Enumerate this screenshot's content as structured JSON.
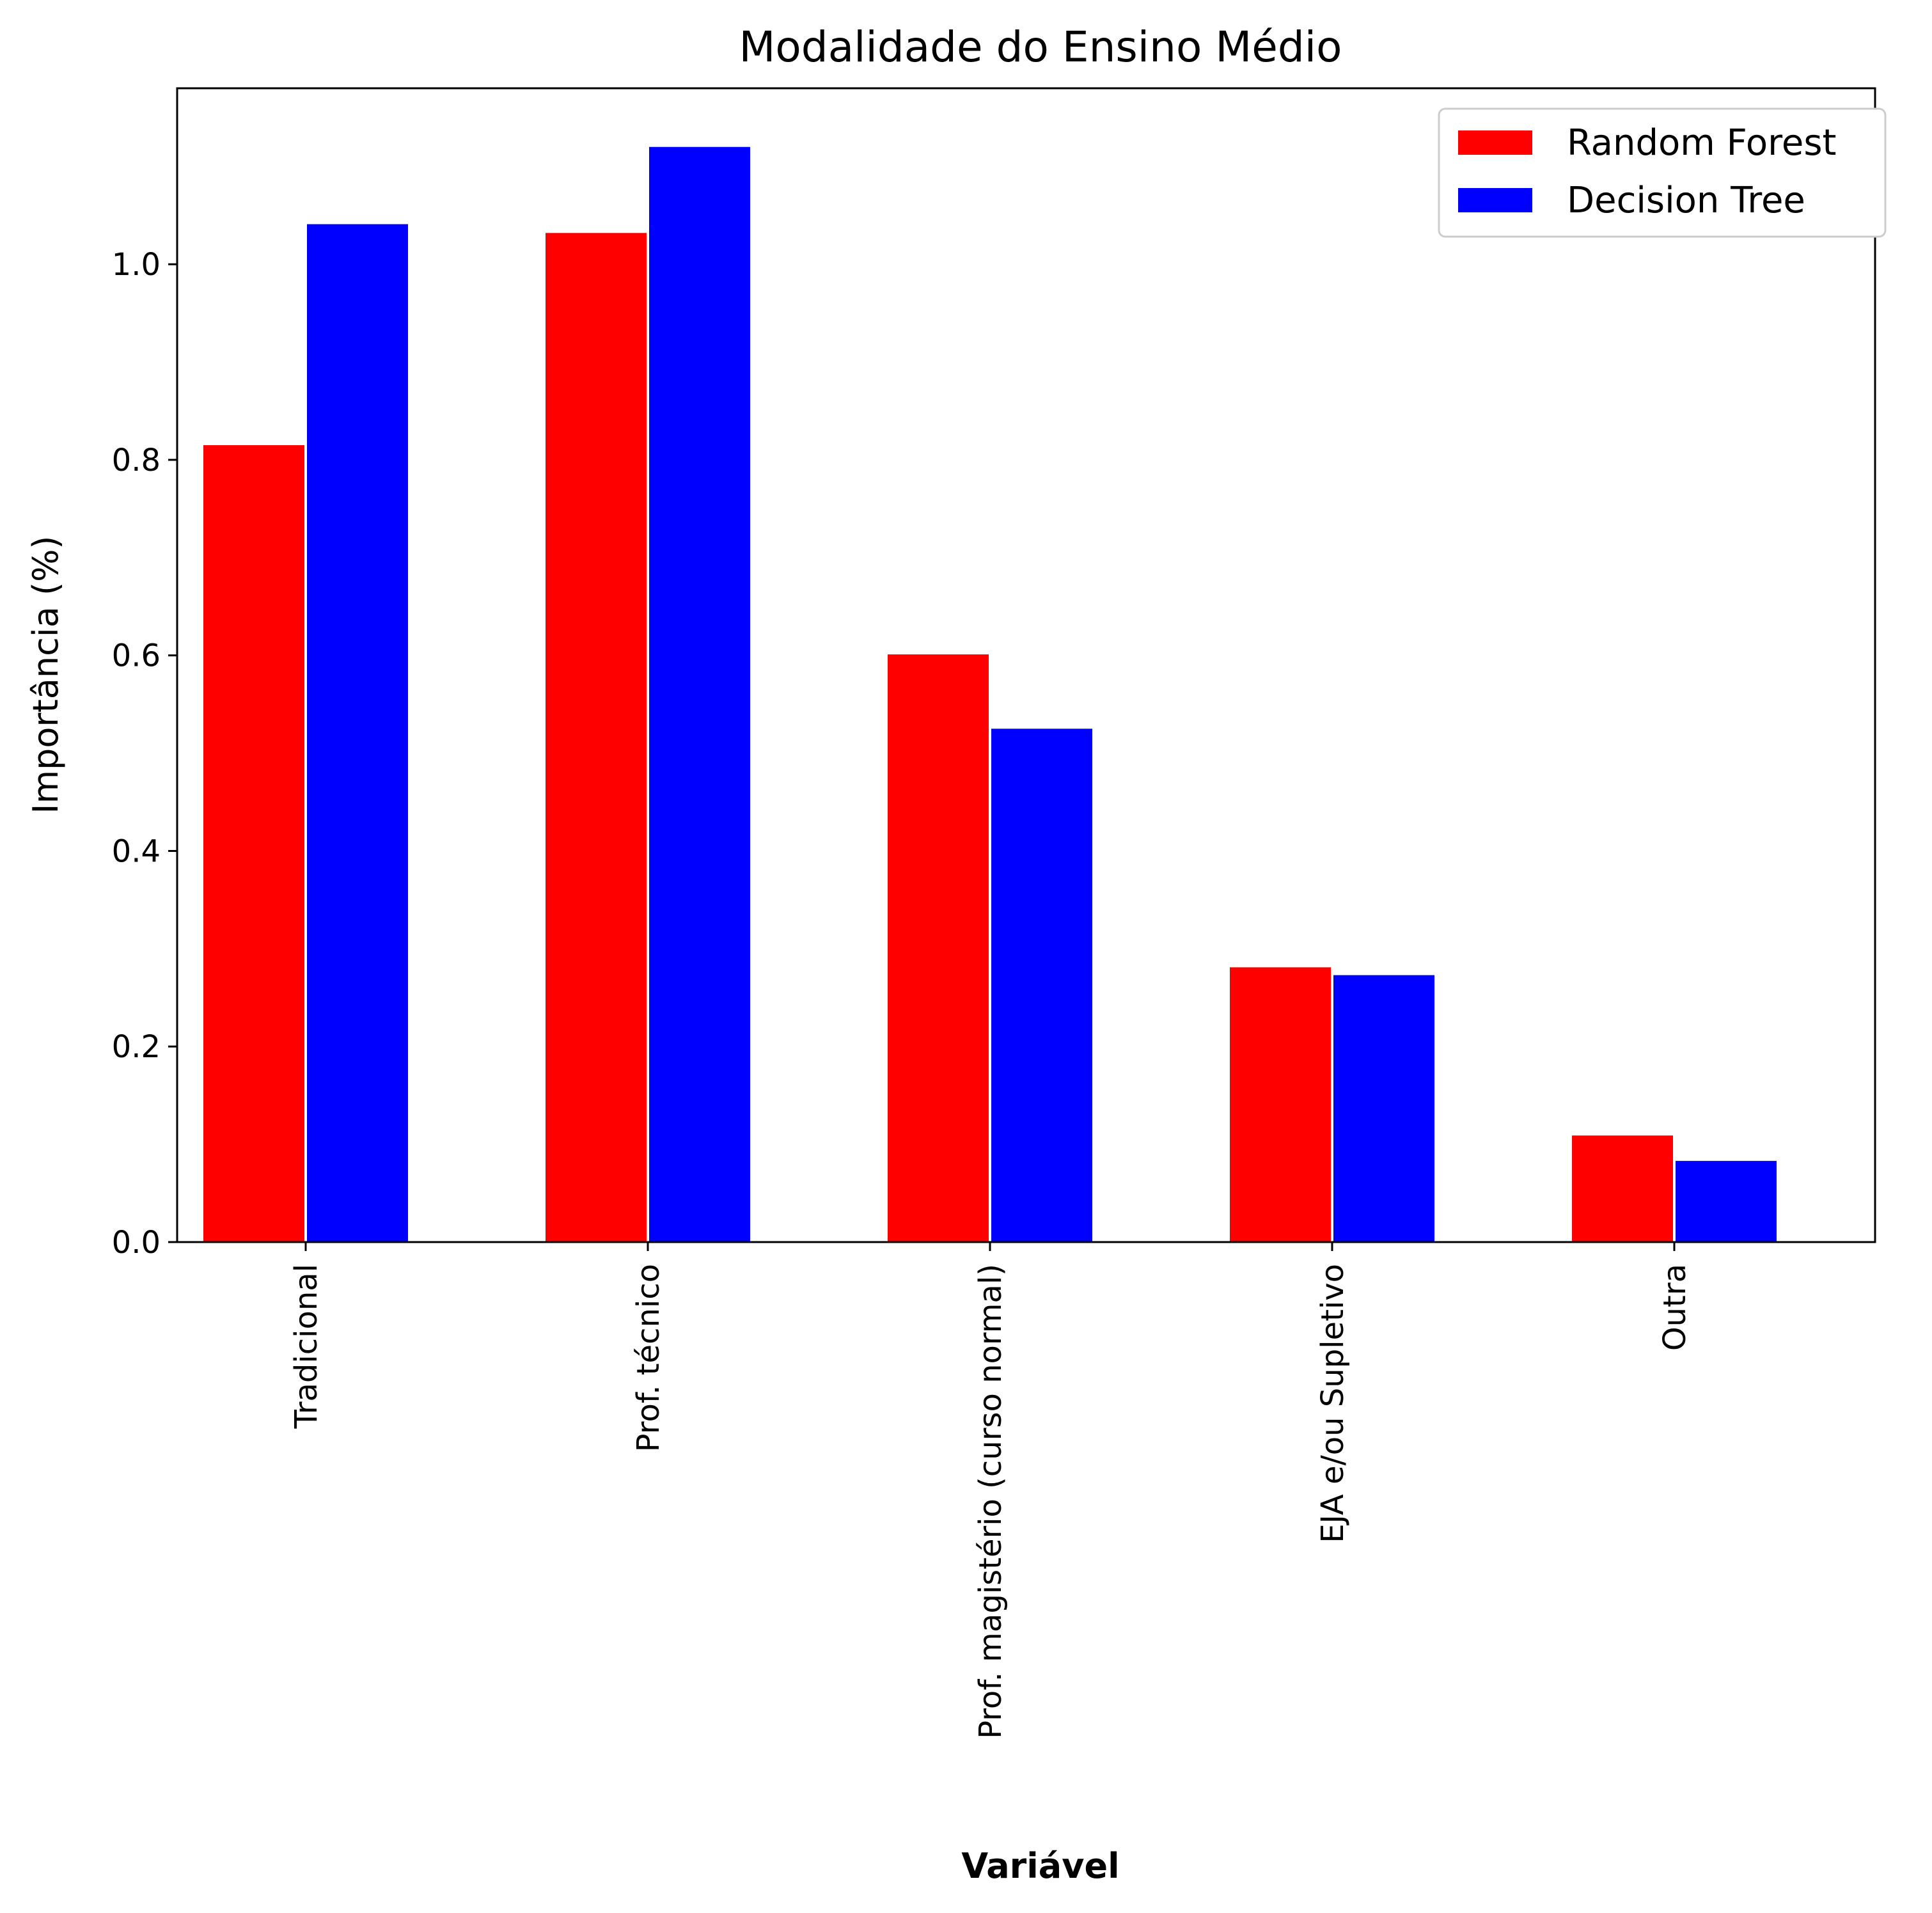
{
  "chart_data": {
    "type": "bar",
    "title": "Modalidade do Ensino Médio",
    "xlabel": "Variável",
    "ylabel": "Importância (%)",
    "categories": [
      "Tradicional",
      "Prof. técnico",
      "Prof. magistério (curso normal)",
      "EJA e/ou Supletivo",
      "Outra"
    ],
    "series": [
      {
        "name": "Random Forest",
        "color": "#ff0000",
        "values": [
          0.815,
          1.032,
          0.601,
          0.281,
          0.109
        ]
      },
      {
        "name": "Decision Tree",
        "color": "#0000ff",
        "values": [
          1.041,
          1.12,
          0.525,
          0.273,
          0.083
        ]
      }
    ],
    "ylim": [
      0,
      1.18
    ],
    "yticks": [
      0.0,
      0.2,
      0.4,
      0.6,
      0.8,
      1.0
    ],
    "ytick_labels": [
      "0.0",
      "0.2",
      "0.4",
      "0.6",
      "0.8",
      "1.0"
    ],
    "grid": false,
    "legend_position": "top-right"
  }
}
